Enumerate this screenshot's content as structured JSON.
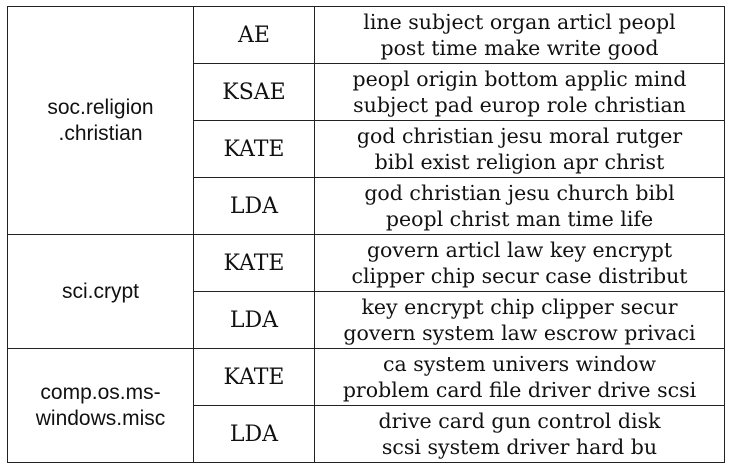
{
  "groups": [
    {
      "category_lines": [
        "soc.religion",
        ".christian"
      ],
      "rows": [
        {
          "method": "AE",
          "line1": "line subject organ articl peopl",
          "line2": "post time make write good"
        },
        {
          "method": "KSAE",
          "line1": "peopl origin bottom applic mind",
          "line2": "subject pad europ role christian"
        },
        {
          "method": "KATE",
          "line1": "god christian jesu moral rutger",
          "line2": "bibl exist religion apr christ"
        },
        {
          "method": "LDA",
          "line1": "god christian jesu church bibl",
          "line2": "peopl christ man time life"
        }
      ]
    },
    {
      "category_lines": [
        "sci.crypt"
      ],
      "rows": [
        {
          "method": "KATE",
          "line1": "govern articl law key encrypt",
          "line2": "clipper chip secur case distribut"
        },
        {
          "method": "LDA",
          "line1": "key encrypt chip clipper secur",
          "line2": "govern system law escrow privaci"
        }
      ]
    },
    {
      "category_lines": [
        "comp.os.ms-",
        "windows.misc"
      ],
      "rows": [
        {
          "method": "KATE",
          "line1": "ca system univers window",
          "line2": "problem card file driver drive scsi"
        },
        {
          "method": "LDA",
          "line1": "drive card gun control disk",
          "line2": "scsi system driver hard bu"
        }
      ]
    }
  ]
}
